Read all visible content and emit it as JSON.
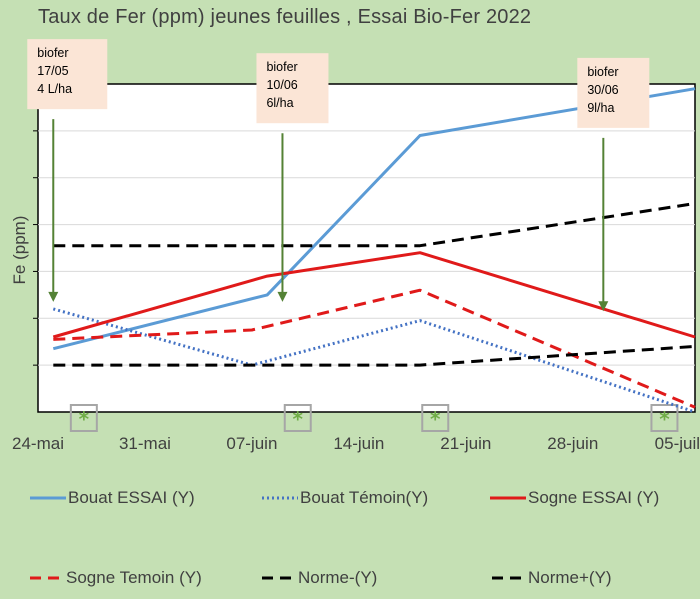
{
  "chart_data": {
    "type": "line",
    "title": "Taux de Fer (ppm) jeunes feuilles , Essai Bio-Fer 2022",
    "ylabel": "Fe (ppm)",
    "xlabel": "",
    "x_ticks": [
      "24-mai",
      "31-mai",
      "07-juin",
      "14-juin",
      "21-juin",
      "28-juin",
      "05-juil."
    ],
    "x_tick_dates": [
      "2022-05-24",
      "2022-05-31",
      "2022-06-07",
      "2022-06-14",
      "2022-06-21",
      "2022-06-28",
      "2022-07-05"
    ],
    "xlim": [
      "2022-05-24",
      "2022-07-06"
    ],
    "ylim": [
      0,
      140
    ],
    "y_tick_values": [
      20,
      40,
      60,
      80,
      100,
      120
    ],
    "grid": true,
    "series": [
      {
        "name": "Bouat ESSAI (Y)",
        "color": "#5b9bd5",
        "style": "solid",
        "points": [
          [
            "2022-05-25",
            27
          ],
          [
            "2022-06-08",
            50
          ],
          [
            "2022-06-18",
            118
          ],
          [
            "2022-07-06",
            138
          ]
        ]
      },
      {
        "name": "Bouat Témoin(Y)",
        "color": "#4472c4",
        "style": "dotted",
        "points": [
          [
            "2022-05-25",
            44
          ],
          [
            "2022-06-07",
            20
          ],
          [
            "2022-06-18",
            39
          ],
          [
            "2022-07-06",
            0
          ]
        ]
      },
      {
        "name": "Sogne ESSAI (Y)",
        "color": "#e01a1a",
        "style": "solid",
        "points": [
          [
            "2022-05-25",
            32
          ],
          [
            "2022-06-08",
            58
          ],
          [
            "2022-06-18",
            68
          ],
          [
            "2022-07-06",
            32
          ]
        ]
      },
      {
        "name": "Sogne Temoin (Y)",
        "color": "#e01a1a",
        "style": "dashed",
        "points": [
          [
            "2022-05-25",
            31
          ],
          [
            "2022-06-07",
            35
          ],
          [
            "2022-06-18",
            52
          ],
          [
            "2022-07-06",
            2
          ]
        ]
      },
      {
        "name": "Norme-(Y)",
        "color": "#000000",
        "style": "dashed",
        "points": [
          [
            "2022-05-25",
            20
          ],
          [
            "2022-06-18",
            20
          ],
          [
            "2022-07-06",
            28
          ]
        ]
      },
      {
        "name": "Norme+(Y)",
        "color": "#000000",
        "style": "dashed",
        "points": [
          [
            "2022-05-25",
            71
          ],
          [
            "2022-06-18",
            71
          ],
          [
            "2022-07-06",
            89
          ]
        ]
      }
    ],
    "annotations": [
      {
        "text": [
          "biofer",
          "17/05",
          "4 L/ha"
        ],
        "date": "2022-05-25",
        "y_from": 125,
        "y_to": 47
      },
      {
        "text": [
          "biofer",
          "10/06",
          "6l/ha"
        ],
        "date": "2022-06-09",
        "y_from": 119,
        "y_to": 47
      },
      {
        "text": [
          "biofer",
          "30/06",
          "9l/ha"
        ],
        "date": "2022-06-30",
        "y_from": 117,
        "y_to": 43
      }
    ],
    "markers": [
      {
        "symbol": "*",
        "date": "2022-05-27"
      },
      {
        "symbol": "*",
        "date": "2022-06-10"
      },
      {
        "symbol": "*",
        "date": "2022-06-19"
      },
      {
        "symbol": "*",
        "date": "2022-07-04"
      }
    ],
    "legend_position": "bottom"
  }
}
